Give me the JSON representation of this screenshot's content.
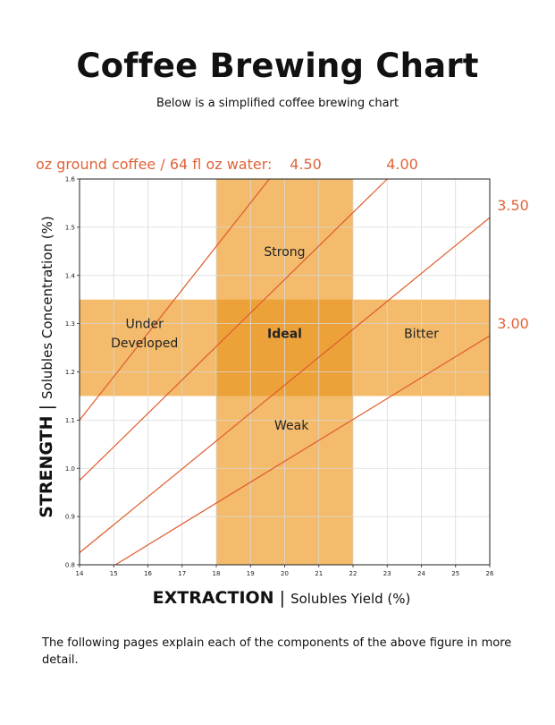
{
  "title": "Coffee Brewing Chart",
  "subtitle": "Below is a simplified coffee brewing chart",
  "footer": "The following pages explain each of the components of the above figure in more detail.",
  "chart_data": {
    "type": "line",
    "xlabel_bold": "EXTRACTION",
    "xlabel_rest": "Solubles Yield (%)",
    "ylabel_bold": "STRENGTH",
    "ylabel_rest": "Solubles Concentration (%)",
    "xlim": [
      14,
      26
    ],
    "ylim": [
      0.8,
      1.6
    ],
    "x_ticks": [
      14,
      15,
      16,
      17,
      18,
      19,
      20,
      21,
      22,
      23,
      24,
      25,
      26
    ],
    "y_ticks": [
      0.8,
      0.9,
      1.0,
      1.1,
      1.2,
      1.3,
      1.4,
      1.5,
      1.6
    ],
    "grid": true,
    "ratio_prefix": "oz ground coffee / 64 fl oz water:",
    "bands": [
      {
        "axis": "x",
        "from": 18,
        "to": 22
      },
      {
        "axis": "y",
        "from": 1.15,
        "to": 1.35
      }
    ],
    "regions": [
      {
        "label": "Strong",
        "x": 20,
        "y": 1.45,
        "bold": false
      },
      {
        "label": "Under",
        "x": 15.9,
        "y": 1.3,
        "bold": false
      },
      {
        "label": "Developed",
        "x": 15.9,
        "y": 1.26,
        "bold": false
      },
      {
        "label": "Ideal",
        "x": 20,
        "y": 1.28,
        "bold": true
      },
      {
        "label": "Bitter",
        "x": 24.0,
        "y": 1.28,
        "bold": false
      },
      {
        "label": "Weak",
        "x": 20.2,
        "y": 1.09,
        "bold": false
      }
    ],
    "series": [
      {
        "name": "4.50",
        "label_pos": "top",
        "x": [
          14,
          19.55
        ],
        "y": [
          1.1,
          1.6
        ]
      },
      {
        "name": "4.00",
        "label_pos": "top",
        "x": [
          14,
          23.0
        ],
        "y": [
          0.975,
          1.6
        ]
      },
      {
        "name": "3.50",
        "label_pos": "right",
        "x": [
          14,
          26
        ],
        "y": [
          0.825,
          1.52
        ]
      },
      {
        "name": "3.00",
        "label_pos": "right",
        "x": [
          15.05,
          26
        ],
        "y": [
          0.8,
          1.275
        ]
      }
    ],
    "colors": {
      "band": "#f0a841",
      "band_overlap": "#e89a2a",
      "line": "#e05a2b",
      "ratio_text": "#e0633a",
      "grid": "#d9d9d9",
      "axis": "#222222"
    }
  }
}
